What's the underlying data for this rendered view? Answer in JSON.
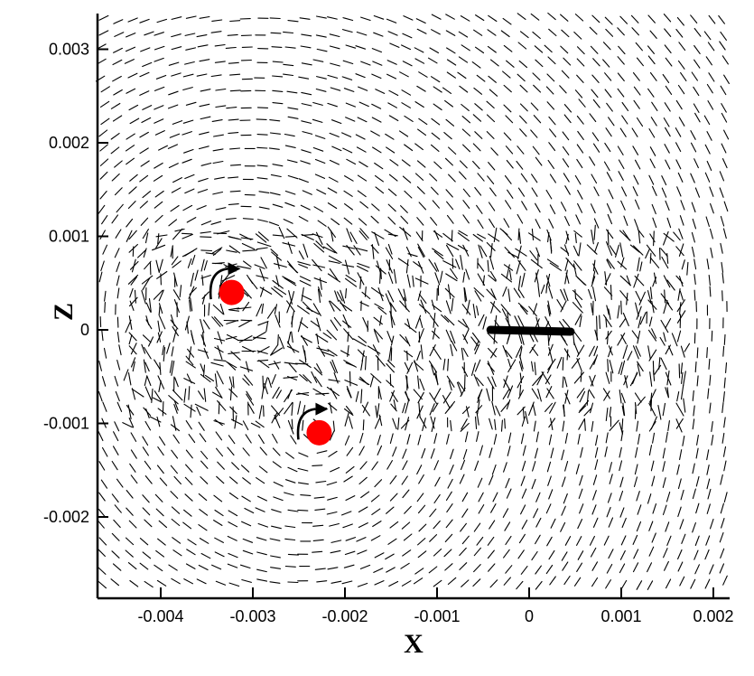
{
  "chart_data": {
    "type": "vector-field",
    "xlabel": "X",
    "ylabel": "Z",
    "xlim": [
      -0.0046,
      0.00205
    ],
    "ylim": [
      -0.0028,
      0.0033
    ],
    "x_ticks": [
      {
        "value": -0.004,
        "label": "-0.004"
      },
      {
        "value": -0.003,
        "label": "-0.003"
      },
      {
        "value": -0.002,
        "label": "-0.002"
      },
      {
        "value": -0.001,
        "label": "-0.001"
      },
      {
        "value": 0,
        "label": "0"
      },
      {
        "value": 0.001,
        "label": "0.001"
      },
      {
        "value": 0.002,
        "label": "0.002"
      }
    ],
    "y_ticks": [
      {
        "value": 0.003,
        "label": "0.003"
      },
      {
        "value": 0.002,
        "label": "0.002"
      },
      {
        "value": 0.001,
        "label": "0.001"
      },
      {
        "value": 0,
        "label": "0"
      },
      {
        "value": -0.001,
        "label": "-0.001"
      },
      {
        "value": -0.002,
        "label": "-0.002"
      }
    ],
    "grid": false,
    "vortices": [
      {
        "x": -0.00323,
        "z": 0.0004,
        "rotation": "clockwise",
        "marker_color": "#ff0000"
      },
      {
        "x": -0.00228,
        "z": -0.0011,
        "rotation": "clockwise",
        "marker_color": "#ff0000"
      }
    ],
    "body_segment": {
      "x_start": -0.00042,
      "x_end": 0.00045,
      "z": 0,
      "color": "#000000"
    },
    "vector_color": "#000000"
  }
}
